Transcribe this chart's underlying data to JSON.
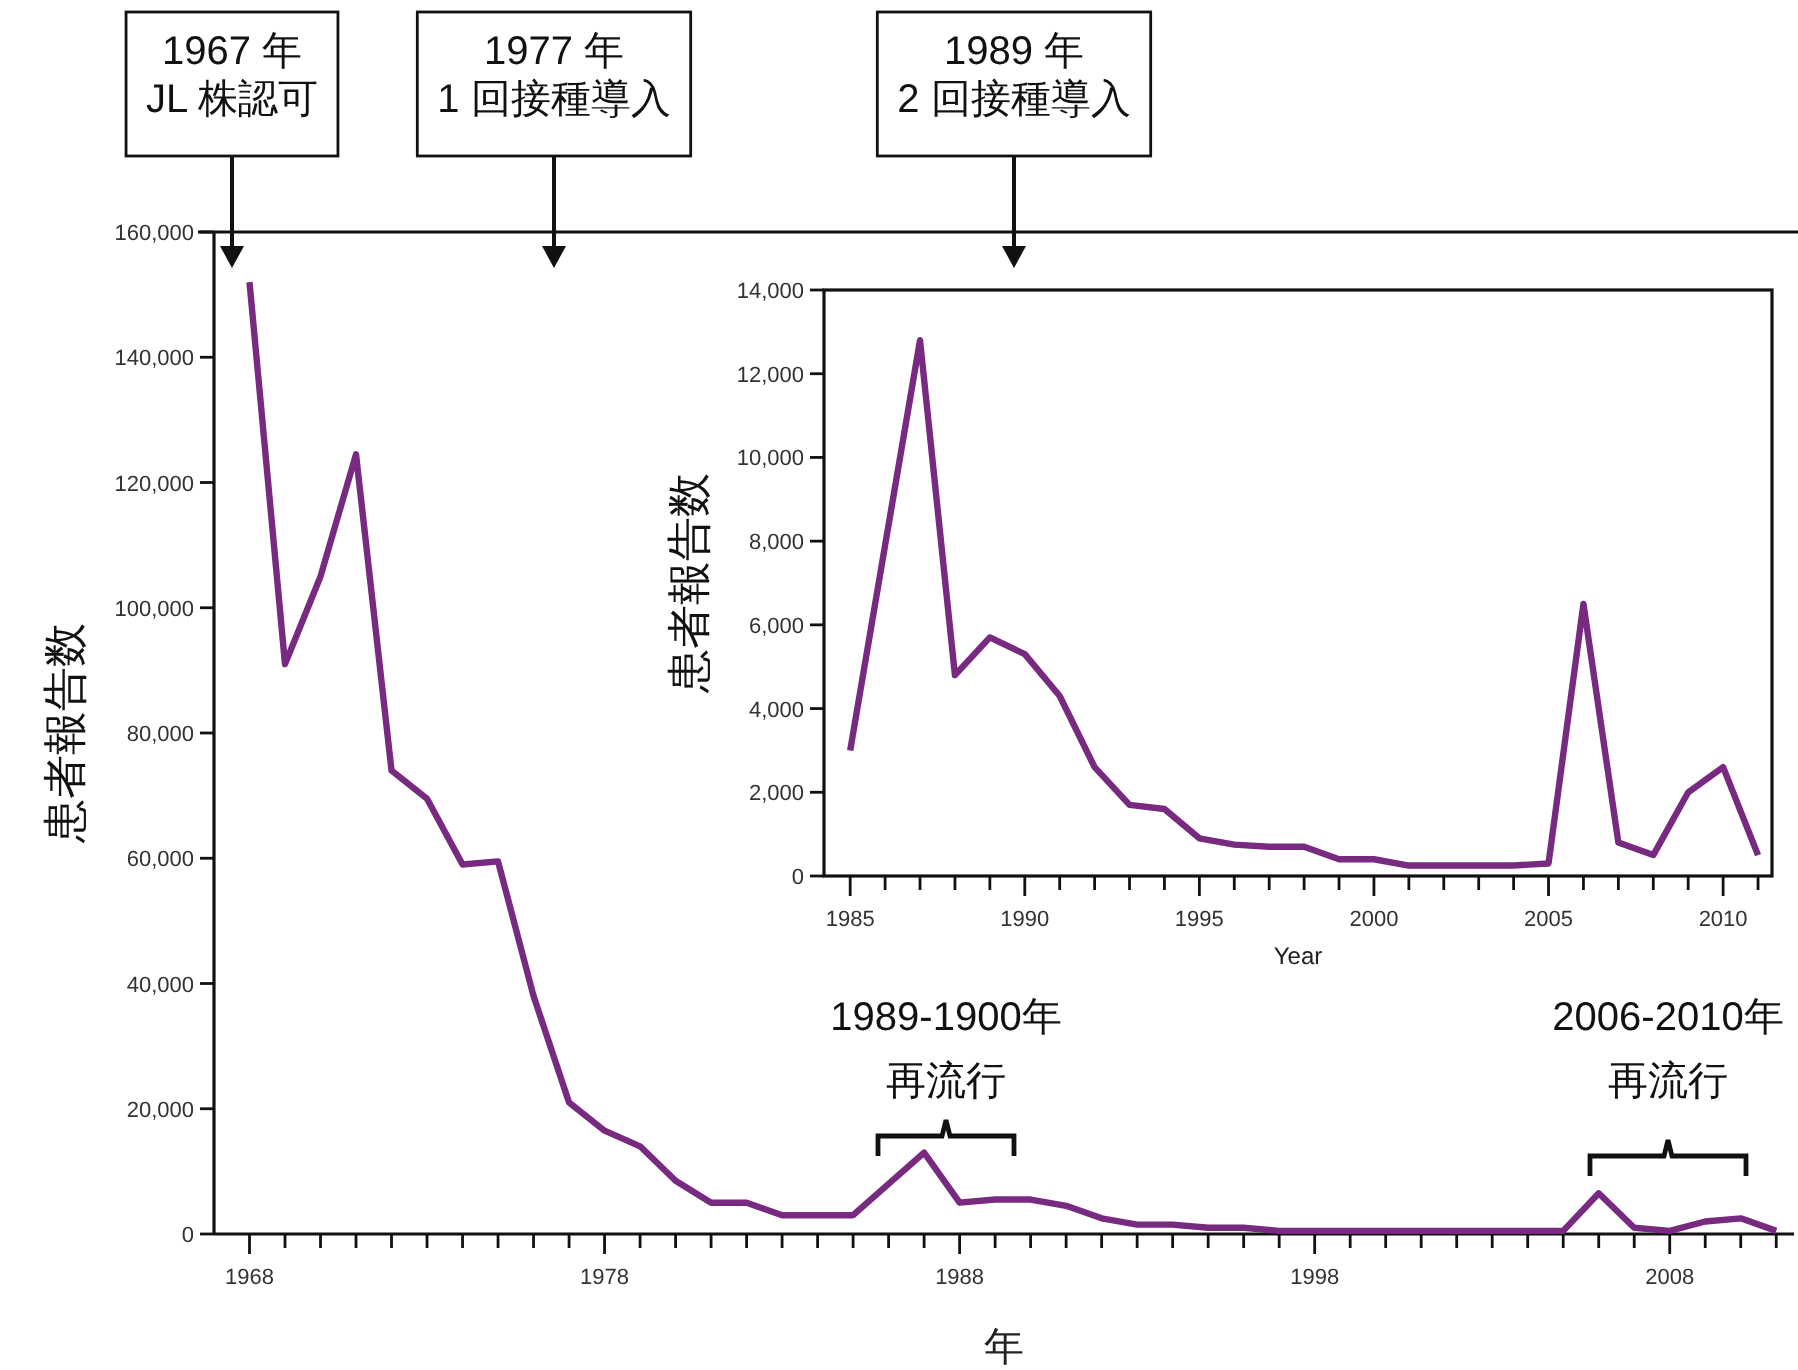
{
  "chart_data": [
    {
      "type": "line",
      "xlabel": "年",
      "ylabel": "患者報告数",
      "color": "#772a80",
      "x": [
        1968,
        1969,
        1970,
        1971,
        1972,
        1973,
        1974,
        1975,
        1976,
        1977,
        1978,
        1979,
        1980,
        1981,
        1982,
        1983,
        1984,
        1985,
        1986,
        1987,
        1988,
        1989,
        1990,
        1991,
        1992,
        1993,
        1994,
        1995,
        1996,
        1997,
        1998,
        1999,
        2000,
        2001,
        2002,
        2003,
        2004,
        2005,
        2006,
        2007,
        2008,
        2009,
        2010,
        2011
      ],
      "values": [
        152000,
        91000,
        105000,
        124500,
        74000,
        69500,
        59000,
        59500,
        38000,
        21000,
        16500,
        14000,
        8500,
        5000,
        5000,
        3000,
        3000,
        3000,
        8000,
        13000,
        5000,
        5500,
        5500,
        4500,
        2500,
        1500,
        1500,
        1000,
        1000,
        500,
        500,
        500,
        500,
        500,
        500,
        500,
        500,
        500,
        6500,
        1000,
        500,
        2000,
        2500,
        500
      ],
      "xlim": [
        1967,
        2011.5
      ],
      "xticks": [
        1968,
        {
          "value": 1969,
          "label": null
        },
        {
          "value": 1970,
          "label": null
        },
        {
          "value": 1971,
          "label": null
        },
        {
          "value": 1972,
          "label": null
        },
        {
          "value": 1973,
          "label": null
        },
        {
          "value": 1974,
          "label": null
        },
        {
          "value": 1975,
          "label": null
        },
        {
          "value": 1976,
          "label": null
        },
        {
          "value": 1977,
          "label": null
        },
        1978,
        {
          "value": 1979,
          "label": null
        },
        {
          "value": 1980,
          "label": null
        },
        {
          "value": 1981,
          "label": null
        },
        {
          "value": 1982,
          "label": null
        },
        {
          "value": 1983,
          "label": null
        },
        {
          "value": 1984,
          "label": null
        },
        {
          "value": 1985,
          "label": null
        },
        {
          "value": 1986,
          "label": null
        },
        {
          "value": 1987,
          "label": null
        },
        1988,
        {
          "value": 1989,
          "label": null
        },
        {
          "value": 1990,
          "label": null
        },
        {
          "value": 1991,
          "label": null
        },
        {
          "value": 1992,
          "label": null
        },
        {
          "value": 1993,
          "label": null
        },
        {
          "value": 1994,
          "label": null
        },
        {
          "value": 1995,
          "label": null
        },
        {
          "value": 1996,
          "label": null
        },
        {
          "value": 1997,
          "label": null
        },
        1998,
        {
          "value": 1999,
          "label": null
        },
        {
          "value": 2000,
          "label": null
        },
        {
          "value": 2001,
          "label": null
        },
        {
          "value": 2002,
          "label": null
        },
        {
          "value": 2003,
          "label": null
        },
        {
          "value": 2004,
          "label": null
        },
        {
          "value": 2005,
          "label": null
        },
        {
          "value": 2006,
          "label": null
        },
        {
          "value": 2007,
          "label": null
        },
        2008,
        {
          "value": 2009,
          "label": null
        },
        {
          "value": 2010,
          "label": null
        },
        {
          "value": 2011,
          "label": null
        }
      ],
      "ylim": [
        0,
        160000
      ],
      "yticks": [
        0,
        {
          "value": 20000,
          "label": "20,000"
        },
        {
          "value": 40000,
          "label": "40,000"
        },
        {
          "value": 60000,
          "label": "60,000"
        },
        {
          "value": 80000,
          "label": "80,000"
        },
        {
          "value": 100000,
          "label": "100,000"
        },
        {
          "value": 120000,
          "label": "120,000"
        },
        {
          "value": 140000,
          "label": "140,000"
        },
        {
          "value": 160000,
          "label": "160,000"
        }
      ],
      "annotations": [
        "1967 年\nJL 株認可",
        "1977 年\n1 回接種導入",
        "1989 年\n2 回接種導入",
        "1989-1900年",
        "再流行",
        "2006-2010年",
        "再流行"
      ]
    },
    {
      "type": "line",
      "xlabel": "Year",
      "ylabel": "患者報告数",
      "color": "#772a80",
      "x": [
        1985,
        1986,
        1987,
        1988,
        1989,
        1990,
        1991,
        1992,
        1993,
        1994,
        1995,
        1996,
        1997,
        1998,
        1999,
        2000,
        2001,
        2002,
        2003,
        2004,
        2005,
        2006,
        2007,
        2008,
        2009,
        2010,
        2011
      ],
      "values": [
        3000,
        7900,
        12800,
        4800,
        5700,
        5300,
        4300,
        2600,
        1700,
        1600,
        900,
        750,
        700,
        700,
        400,
        400,
        250,
        250,
        250,
        250,
        300,
        6500,
        800,
        500,
        2000,
        2600,
        500
      ],
      "xlim": [
        1984.25,
        2011.4
      ],
      "xticks": [
        1985,
        {
          "value": 1986,
          "label": null
        },
        {
          "value": 1987,
          "label": null
        },
        {
          "value": 1988,
          "label": null
        },
        {
          "value": 1989,
          "label": null
        },
        1990,
        {
          "value": 1991,
          "label": null
        },
        {
          "value": 1992,
          "label": null
        },
        {
          "value": 1993,
          "label": null
        },
        {
          "value": 1994,
          "label": null
        },
        1995,
        {
          "value": 1996,
          "label": null
        },
        {
          "value": 1997,
          "label": null
        },
        {
          "value": 1998,
          "label": null
        },
        {
          "value": 1999,
          "label": null
        },
        2000,
        {
          "value": 2001,
          "label": null
        },
        {
          "value": 2002,
          "label": null
        },
        {
          "value": 2003,
          "label": null
        },
        {
          "value": 2004,
          "label": null
        },
        2005,
        {
          "value": 2006,
          "label": null
        },
        {
          "value": 2007,
          "label": null
        },
        {
          "value": 2008,
          "label": null
        },
        {
          "value": 2009,
          "label": null
        },
        2010,
        {
          "value": 2011,
          "label": null
        }
      ],
      "ylim": [
        0,
        14000
      ],
      "yticks": [
        0,
        {
          "value": 2000,
          "label": "2,000"
        },
        {
          "value": 4000,
          "label": "4,000"
        },
        {
          "value": 6000,
          "label": "6,000"
        },
        {
          "value": 8000,
          "label": "8,000"
        },
        {
          "value": 10000,
          "label": "10,000"
        },
        {
          "value": 12000,
          "label": "12,000"
        },
        {
          "value": 14000,
          "label": "14,000"
        }
      ]
    }
  ]
}
